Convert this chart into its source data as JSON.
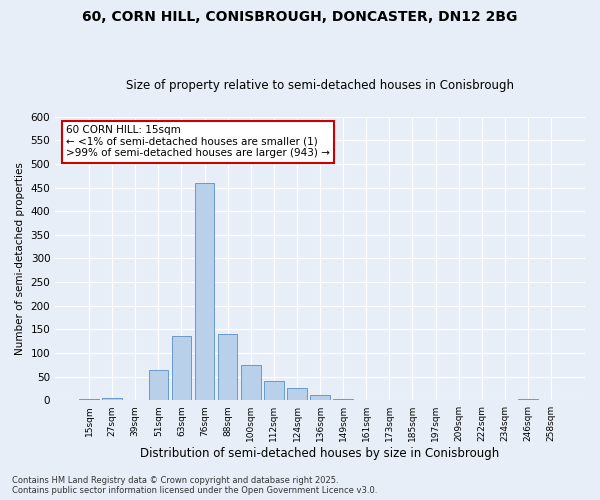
{
  "title1": "60, CORN HILL, CONISBROUGH, DONCASTER, DN12 2BG",
  "title2": "Size of property relative to semi-detached houses in Conisbrough",
  "xlabel": "Distribution of semi-detached houses by size in Conisbrough",
  "ylabel": "Number of semi-detached properties",
  "categories": [
    "15sqm",
    "27sqm",
    "39sqm",
    "51sqm",
    "63sqm",
    "76sqm",
    "88sqm",
    "100sqm",
    "112sqm",
    "124sqm",
    "136sqm",
    "149sqm",
    "161sqm",
    "173sqm",
    "185sqm",
    "197sqm",
    "209sqm",
    "222sqm",
    "234sqm",
    "246sqm",
    "258sqm"
  ],
  "values": [
    2,
    4,
    0,
    65,
    135,
    460,
    140,
    75,
    40,
    25,
    10,
    2,
    0,
    0,
    0,
    0,
    0,
    0,
    0,
    2,
    0
  ],
  "bar_color": "#b8d0ea",
  "bar_edge_color": "#6699cc",
  "background_color": "#e8eef7",
  "annotation_box_color": "#ffffff",
  "annotation_border_color": "#cc0000",
  "annotation_title": "60 CORN HILL: 15sqm",
  "annotation_line1": "← <1% of semi-detached houses are smaller (1)",
  "annotation_line2": ">99% of semi-detached houses are larger (943) →",
  "ylim": [
    0,
    600
  ],
  "yticks": [
    0,
    50,
    100,
    150,
    200,
    250,
    300,
    350,
    400,
    450,
    500,
    550,
    600
  ],
  "footer1": "Contains HM Land Registry data © Crown copyright and database right 2025.",
  "footer2": "Contains public sector information licensed under the Open Government Licence v3.0."
}
